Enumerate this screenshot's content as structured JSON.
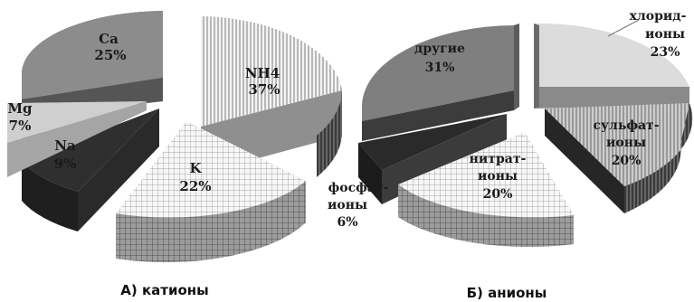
{
  "chart_data": [
    {
      "type": "pie",
      "caption": "А) катионы",
      "slices": [
        {
          "label": "Ca",
          "value": 25,
          "value_label": "25%",
          "style": "solid",
          "color": "#8c8c8c"
        },
        {
          "label": "NH4",
          "value": 37,
          "value_label": "37%",
          "style": "vertical-hatch",
          "color": "#efefef"
        },
        {
          "label": "K",
          "value": 22,
          "value_label": "22%",
          "style": "grid",
          "color": "#f2f2f2"
        },
        {
          "label": "Na",
          "value": 9,
          "value_label": "9%",
          "style": "solid",
          "color": "#2f2f2f"
        },
        {
          "label": "Mg",
          "value": 7,
          "value_label": "7%",
          "style": "solid",
          "color": "#cfcfcf"
        }
      ]
    },
    {
      "type": "pie",
      "caption": "Б) анионы",
      "slices": [
        {
          "label": "хлорид-ионы",
          "label_lines": [
            "хлорид-",
            "ионы"
          ],
          "value": 23,
          "value_label": "23%",
          "style": "solid",
          "color": "#dcdcdc"
        },
        {
          "label": "сульфат-ионы",
          "label_lines": [
            "сульфат-",
            "ионы"
          ],
          "value": 20,
          "value_label": "20%",
          "style": "vertical-hatch",
          "color": "#bdbdbd"
        },
        {
          "label": "нитрат-ионы",
          "label_lines": [
            "нитрат-",
            "ионы"
          ],
          "value": 20,
          "value_label": "20%",
          "style": "grid",
          "color": "#f2f2f2"
        },
        {
          "label": "фосфат-ионы",
          "label_lines": [
            "фосфат-",
            "ионы"
          ],
          "value": 6,
          "value_label": "6%",
          "style": "solid",
          "color": "#2a2a2a"
        },
        {
          "label": "другие",
          "label_lines": [
            "другие"
          ],
          "value": 31,
          "value_label": "31%",
          "style": "solid",
          "color": "#7f7f7f"
        }
      ]
    }
  ]
}
